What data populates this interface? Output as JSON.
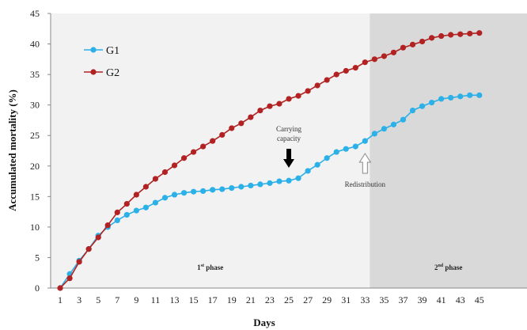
{
  "chart_data": {
    "type": "line",
    "xlabel": "Days",
    "ylabel": "Accumulated mortality (%)",
    "xlim": [
      0,
      50
    ],
    "ylim": [
      0,
      45
    ],
    "x_ticks": [
      1,
      3,
      5,
      7,
      9,
      11,
      13,
      15,
      17,
      19,
      21,
      23,
      25,
      27,
      29,
      31,
      33,
      35,
      37,
      39,
      41,
      43,
      45
    ],
    "y_ticks": [
      0,
      5,
      10,
      15,
      20,
      25,
      30,
      35,
      40,
      45
    ],
    "x": [
      1,
      2,
      3,
      4,
      5,
      6,
      7,
      8,
      9,
      10,
      11,
      12,
      13,
      14,
      15,
      16,
      17,
      18,
      19,
      20,
      21,
      22,
      23,
      24,
      25,
      26,
      27,
      28,
      29,
      30,
      31,
      32,
      33,
      34,
      35,
      36,
      37,
      38,
      39,
      40,
      41,
      42,
      43,
      44,
      45
    ],
    "series": [
      {
        "name": "G1",
        "color": "#2bb0e8",
        "values": [
          0,
          2.3,
          4.5,
          6.4,
          8.6,
          10.0,
          11.1,
          12.0,
          12.7,
          13.2,
          14.0,
          14.8,
          15.3,
          15.6,
          15.8,
          15.9,
          16.1,
          16.2,
          16.4,
          16.6,
          16.8,
          17.0,
          17.2,
          17.5,
          17.6,
          18.0,
          19.2,
          20.2,
          21.3,
          22.3,
          22.8,
          23.2,
          24.1,
          25.3,
          26.1,
          26.8,
          27.6,
          29.1,
          29.8,
          30.4,
          31.0,
          31.2,
          31.4,
          31.6,
          31.6
        ]
      },
      {
        "name": "G2",
        "color": "#b22222",
        "values": [
          0,
          1.6,
          4.3,
          6.4,
          8.3,
          10.3,
          12.4,
          13.8,
          15.3,
          16.6,
          17.9,
          19.0,
          20.1,
          21.3,
          22.3,
          23.2,
          24.1,
          25.1,
          26.2,
          27.0,
          28.0,
          29.1,
          29.8,
          30.2,
          31.0,
          31.5,
          32.3,
          33.2,
          34.1,
          35.0,
          35.6,
          36.1,
          37.0,
          37.5,
          38.0,
          38.6,
          39.4,
          39.9,
          40.4,
          41.0,
          41.3,
          41.5,
          41.6,
          41.7,
          41.8
        ]
      }
    ],
    "legend": {
      "position": "top-left"
    },
    "phases": [
      {
        "label": "1st phase",
        "label_main": "1",
        "label_sup": "st",
        "label_rest": " phase",
        "from_day": 0,
        "to_day": 33.5,
        "color": "#f2f2f2"
      },
      {
        "label": "2nd phase",
        "label_main": "2",
        "label_sup": "nd",
        "label_rest": " phase",
        "from_day": 33.5,
        "to_day": 50,
        "color": "#d9d9d9"
      }
    ],
    "annotations": [
      {
        "lines": [
          "Carrying",
          "capacity"
        ],
        "day": 25,
        "arrow": "black-down"
      },
      {
        "lines": [
          "Redistribution"
        ],
        "day": 33,
        "arrow": "white-up"
      }
    ]
  }
}
